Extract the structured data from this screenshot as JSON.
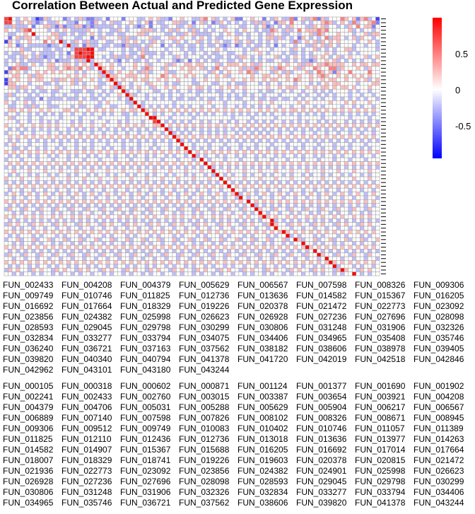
{
  "chart_data": {
    "type": "heatmap",
    "title": "Correlation Between Actual and Predicted Gene Expression",
    "xlabel": "",
    "ylabel": "",
    "color_scale": {
      "low": "#0000FF",
      "mid": "#FFFFFF",
      "high": "#FF0000",
      "range": [
        -0.95,
        1.0
      ],
      "ticks": [
        0.5,
        0,
        -0.5
      ],
      "tick_labels": [
        "0.5",
        "0",
        "-0.5"
      ]
    },
    "value_encoding": "each character d in a matrix row encodes value (d-4)/4",
    "row_labels": [
      "FUN_002433",
      "FUN_004208",
      "FUN_004379",
      "FUN_005629",
      "FUN_006567",
      "FUN_007598",
      "FUN_008326",
      "FUN_009306",
      "FUN_009749",
      "FUN_010746",
      "FUN_011825",
      "FUN_012736",
      "FUN_013636",
      "FUN_014582",
      "FUN_015367",
      "FUN_016205",
      "FUN_016692",
      "FUN_017664",
      "FUN_018329",
      "FUN_019226",
      "FUN_020378",
      "FUN_021472",
      "FUN_022773",
      "FUN_023092",
      "FUN_023856",
      "FUN_024382",
      "FUN_025998",
      "FUN_026623",
      "FUN_026928",
      "FUN_027236",
      "FUN_027696",
      "FUN_028098",
      "FUN_028593",
      "FUN_029045",
      "FUN_029798",
      "FUN_030299",
      "FUN_030806",
      "FUN_031248",
      "FUN_031906",
      "FUN_032326",
      "FUN_032834",
      "FUN_033277",
      "FUN_033794",
      "FUN_034075",
      "FUN_034406",
      "FUN_034965",
      "FUN_035408",
      "FUN_035746",
      "FUN_036240",
      "FUN_036721",
      "FUN_037163",
      "FUN_037562",
      "FUN_038182",
      "FUN_038606",
      "FUN_038978",
      "FUN_039405",
      "FUN_039820",
      "FUN_040340",
      "FUN_040794",
      "FUN_041378",
      "FUN_041720",
      "FUN_042019",
      "FUN_042518",
      "FUN_042846",
      "FUN_042962",
      "FUN_043101",
      "FUN_043180",
      "FUN_043244"
    ],
    "col_labels": [
      "FUN_000105",
      "FUN_000318",
      "FUN_000602",
      "FUN_000871",
      "FUN_001124",
      "FUN_001377",
      "FUN_001690",
      "FUN_001902",
      "FUN_002241",
      "FUN_002433",
      "FUN_002760",
      "FUN_003015",
      "FUN_003387",
      "FUN_003654",
      "FUN_003921",
      "FUN_004208",
      "FUN_004379",
      "FUN_004706",
      "FUN_005031",
      "FUN_005288",
      "FUN_005629",
      "FUN_005904",
      "FUN_006217",
      "FUN_006567",
      "FUN_006889",
      "FUN_007140",
      "FUN_007598",
      "FUN_007826",
      "FUN_008102",
      "FUN_008326",
      "FUN_008671",
      "FUN_008945",
      "FUN_009306",
      "FUN_009512",
      "FUN_009749",
      "FUN_010083",
      "FUN_010402",
      "FUN_010746",
      "FUN_011057",
      "FUN_011389",
      "FUN_011825",
      "FUN_012110",
      "FUN_012436",
      "FUN_012736",
      "FUN_013018",
      "FUN_013636",
      "FUN_013977",
      "FUN_014263",
      "FUN_014582",
      "FUN_014907",
      "FUN_015367",
      "FUN_015688",
      "FUN_016205",
      "FUN_016692",
      "FUN_017014",
      "FUN_017664",
      "FUN_018007",
      "FUN_018329",
      "FUN_018741",
      "FUN_019226",
      "FUN_019603",
      "FUN_020378",
      "FUN_020815",
      "FUN_021472",
      "FUN_021936",
      "FUN_022773",
      "FUN_023092",
      "FUN_023856",
      "FUN_024382",
      "FUN_024901",
      "FUN_025998",
      "FUN_026623",
      "FUN_026928",
      "FUN_027236",
      "FUN_027696",
      "FUN_028098",
      "FUN_028593",
      "FUN_029045",
      "FUN_029798",
      "FUN_030299",
      "FUN_030806",
      "FUN_031248",
      "FUN_031906",
      "FUN_032326",
      "FUN_032834",
      "FUN_033277",
      "FUN_033794",
      "FUN_034406",
      "FUN_034965",
      "FUN_035746",
      "FUN_036721",
      "FUN_037562",
      "FUN_038606",
      "FUN_039820",
      "FUN_041378",
      "FUN_043244"
    ],
    "matrix": [
      "784345431253444234353223342444244433454533244544335645343452244544243543362453562534446545256341",
      "774354532343354433244325434533445434524334455334245342354343434353534255464434344565345436344562",
      "335333424455325233552323333343434323424433443345344434433444334434523434354443354534434354645524",
      "544356744443434543333544344335434445553434535443534343445443454434336543534645556564444453434434",
      "433445484444553343433454343343344455344443343354533334434543343443435443344344536544454443445355",
      "424535543445453444334424354445353344453344554544345434334445443443455353434254343463554345354434",
      "154344544464548343543533443344354543435434435434453434543345345343434344436345453545454444344543",
      "454234333332334383342533433433253334354424343343343433432342343433434243443443354535434443443443",
      "444453344433433443777884334444343435344443444343343444543444434354443444435434453434344553444443",
      "343354434333343424787784444344343345333434344434344343344334434445434443433434344454344434344444",
      "433435435323343435777884434353353436434434435434443434334343554343444534345434354543453454445345",
      "343434333343423334353834443432434334344344432342434343344334344343433443343433234454534343434434",
      "344533454345544554345438544543444544534445354455455444534555454535444454544535545565555445455455",
      "426566344445534565564534854544344543654435444545545343645444535365445365445354465446635444543544",
      "154543445454545444343444385345445435534445334445444435434544546534443543534445346545254464444644",
      "445544535544444454545444538554455544544465454454544344545344444544554454544544545654454545454544",
      "154544545544535545354454345854544545544545445444344544544454454544545544546544544545544544545345",
      "155444344433434445343444334483443444354443433444334443344343334443434434443444343454554444344455",
      "455355443544453444445445344538543454435445454445455434454545454444454454555445454554545545444544",
      "444343434334334443334334434344834434443344343443433434334434434443433443434434434343444434344344",
      "353444343444344344344434343445485344344434344344434444434343434344344434444343443434344434434434",
      "344343334243333433343433434443438444343434343343343433434343344343343343343434434344343434343443",
      "543445434443444444454444345444433843444444434444444454443444434445445444444545444445444545444544",
      "433443353443334443433443344334443483434343434343443443443443434343434434434434434344443443434434",
      "455454544545444554544545454544545548545454545454545454545454545445454545455454545454545454545454",
      "344344343434343443443434434344334344843434434343434343443434343434343443434343434344343434343434",
      "453444344344443444434444344444434444488444344444344444444434444344444344444344444344444434444344",
      "444344344343434443434434443443434443447843434343443434434343443434343443434343443434344343434343",
      "544454454545454445454454454445454545445584545454545454545445454545454545454545454545454545454545",
      "434343434343434434343434343434343434343448343434343434343434343434343434343434343434343434343434",
      "344434434443443434434434434434434434434434834343443434343443434343434434434434434434434434434434",
      "454545454545454545454545454545454545454545485454545454545454545454545454545454545454545454545454",
      "434344343434343434343434343434343434343434348343434343434343434343434343434343434343434343434343",
      "345444344434443444344434443444344434443444344844344434443444344434443444344434443444344434443444",
      "443343443434434344343434434344343434434344343484343434434344343434434344343434434344343434434344",
      "545454545454545454545454545454545454545454545458454545454545454545454545454545454545454545454545",
      "434344343443434434344343443434434344343443434434834344343443434434344343443434434344343443434434",
      "344434443444344434443444344434443444344434443444348434443444344434443444344434443444344434443444",
      "454545454545454545454545454545454545454545454545454845454545454545454545454545454545454545454545",
      "343434343434343434343434343434343434343434343434343483434343434343434343434343434343434343434343",
      "445444544454445444544454445444544454445444544454445448444544454445444544454445444544454445444544",
      "434344343443434434344343443434434344343443434434344343843434434344343443434434344343443434434344",
      "544454445444544454445444544454445444544454445444544454484544454445444544454445444544454445444544",
      "343434343434343434343434343434343434343434343434343434348434343434343434343434343434343434343434",
      "454545454545454545454545454545454545454545454545454545454845454545454545454545454545454545454545",
      "434434434434434434434434434434434434434434434434434434434484434434434434434434434434434434434434",
      "345434543454345434543454345434543454345434543454345434543458345434543454345434543454345434543454",
      "443443443443443443443443443443443443443443443443443443443443843443443443443443443443443443443443",
      "545454545454545454545454545454545454545454545454545454545454548454545454545454545454545454545454",
      "434343434343434343434343434343434343434343434343434343434343434834343434343434343434343434343434",
      "354435443544354435443544354435443544354435443544354435443544354485443544354435443544354435443544",
      "443434434344343443434434434344343443434434434344343443434434434348434434434344343443434434434344",
      "545445454544545445454544545445454544545445454544545445454544545445854544545445454544545445454544",
      "434343434343434343434343434343434343434343434343434343434343434343448343434343434343434343434343",
      "354544354544354544354544354544354544354544354544354544354544354544358544354544354544354544354544",
      "443434434434434434434434434434434434434434434434434434434434434434434844434434434434434434434434",
      "545454545454545454545454545454545454545454545454545454545454545454545458545454545454545454545454",
      "434344434344434344434344434344434344434344434344434344434344434344434344834344434344434344434344",
      "344534453445344534453445344534453445344534453445344534453445344534453445348534453445344534453445",
      "443434434344343443434434434344343443434434434344343443434434434344343443434484434344343443434434",
      "545454545454545454545454545454545454545454545454545454545454545454545454545458545454545454545454",
      "434343434343434343434343434343434343434343434343434343434343434343434343434343484343434343434343",
      "354435443544354435443544354435443544354435443544354435443544354435443544354435448544354435443544",
      "443443443443443443443443443443443443443443443443443443443443443443443443443443443484443443443443",
      "545454545454545454545454545454545454545454545454545454545454545454545454545454545458545454545454",
      "434344343443434434344343443434434344343443434434344343443434434434344343443434434344834443434434",
      "354544354544354544354544354544354544354544354544354544354544354544354544354544354544358544354544",
      "443434434344343443434434434344343443434434434344343443434434434344343443434434434344343448434344"
    ]
  }
}
